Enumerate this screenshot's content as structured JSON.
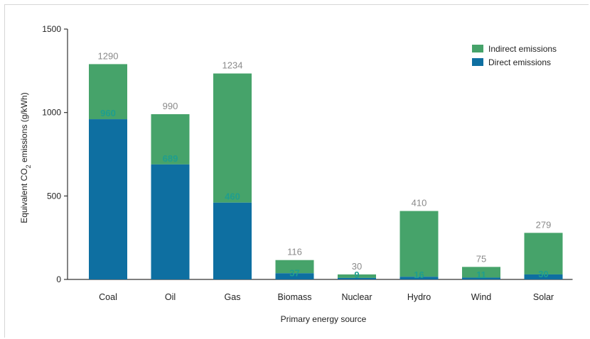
{
  "chart_data": {
    "type": "bar",
    "stacked": true,
    "categories": [
      "Coal",
      "Oil",
      "Gas",
      "Biomass",
      "Nuclear",
      "Hydro",
      "Wind",
      "Solar"
    ],
    "series": [
      {
        "name": "Direct emissions",
        "values": [
          960,
          689,
          460,
          37,
          9,
          16,
          11,
          30
        ],
        "color": "#0e6fa1"
      },
      {
        "name": "Indirect emissions",
        "values": [
          330,
          301,
          774,
          79,
          21,
          394,
          64,
          249
        ],
        "color": "#46a36a"
      }
    ],
    "totals": [
      1290,
      990,
      1234,
      116,
      30,
      410,
      75,
      279
    ],
    "direct_labels": [
      "960",
      "689",
      "460",
      "37",
      "9",
      "16",
      "11",
      "30"
    ],
    "total_labels": [
      "1290",
      "990",
      "1234",
      "116",
      "30",
      "410",
      "75",
      "279"
    ],
    "yticks": [
      "0",
      "500",
      "1000",
      "1500"
    ],
    "ylim": [
      0,
      1500
    ],
    "xlabel": "Primary energy source",
    "ylabel_parts": [
      "Equivalent CO",
      "2",
      " emissions (g/kWh)"
    ],
    "legend": {
      "position": "top-right",
      "entries": [
        {
          "label": "Indirect emissions",
          "color": "#46a36a"
        },
        {
          "label": "Direct emissions",
          "color": "#0e6fa1"
        }
      ]
    },
    "grid": false
  }
}
